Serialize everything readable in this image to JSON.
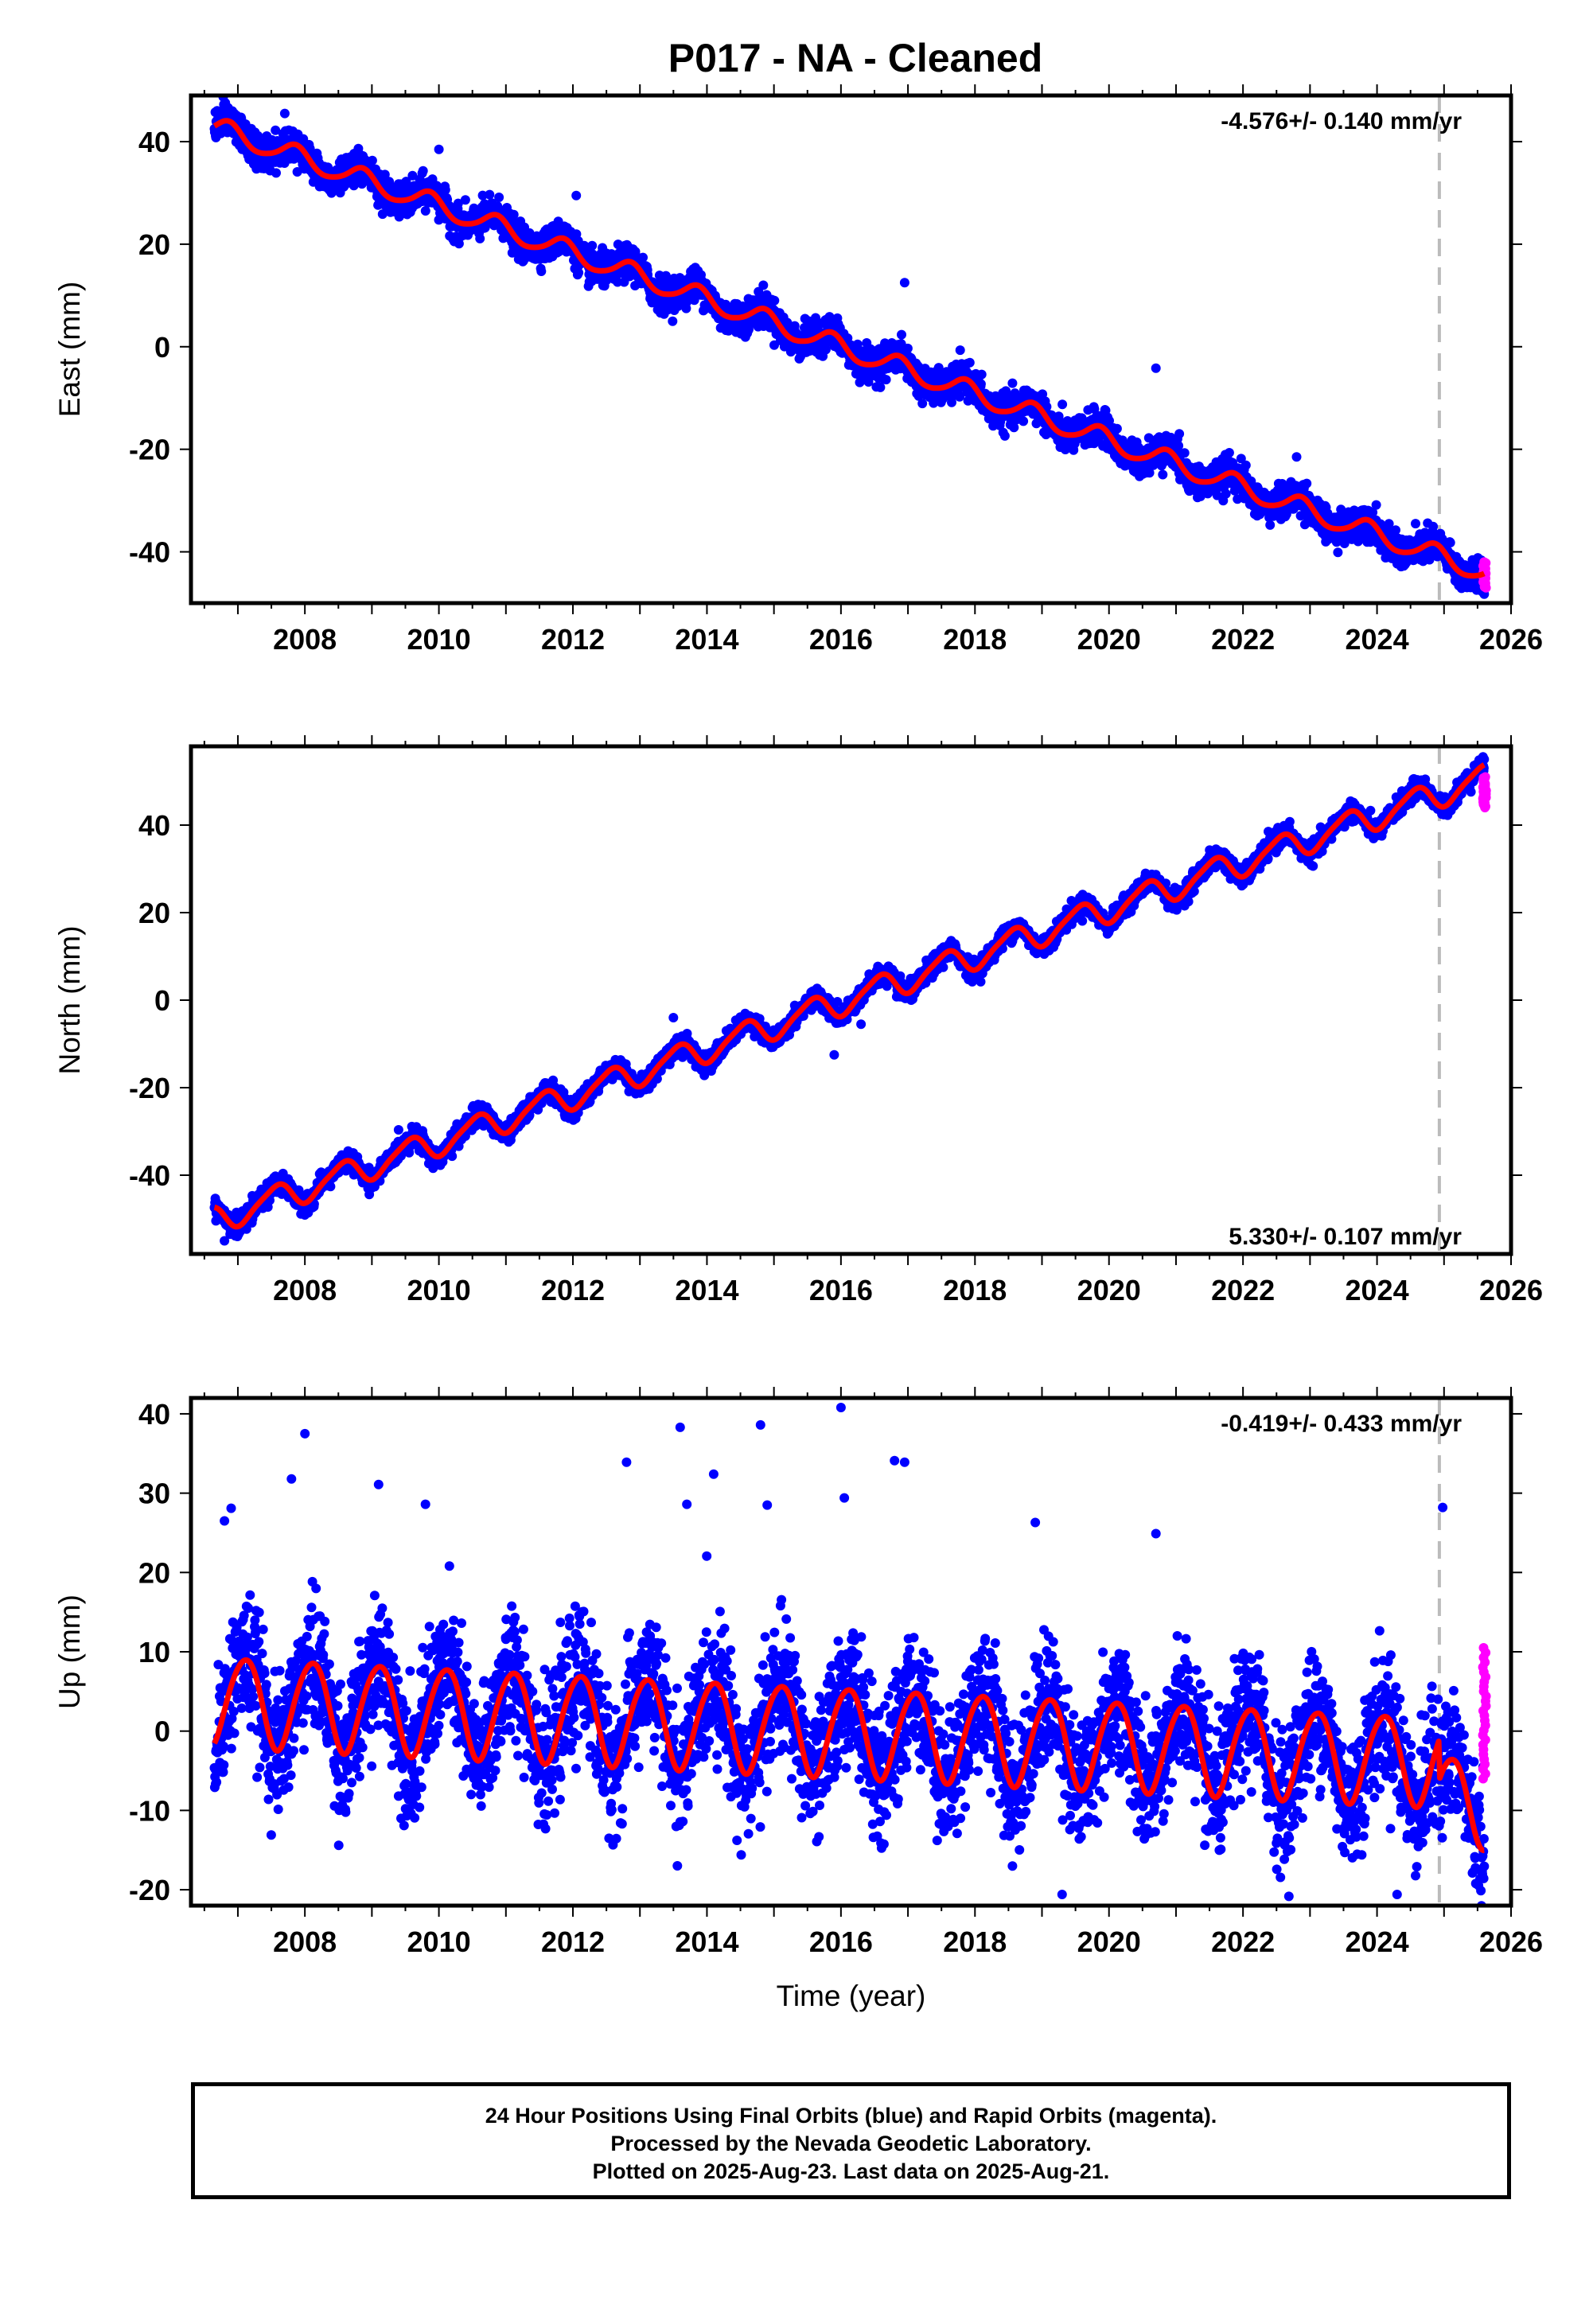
{
  "title": "P017  - NA - Cleaned",
  "caption": {
    "line1": "24 Hour Positions Using Final Orbits (blue) and Rapid Orbits (magenta).",
    "line2": "Processed by the Nevada Geodetic Laboratory.",
    "line3": "Plotted on 2025-Aug-23. Last data on 2025-Aug-21."
  },
  "colors": {
    "final_orbits": "#0000ff",
    "rapid_orbits": "#ff00ff",
    "model_fit": "#ff0000",
    "break_line": "#bbbbbb"
  },
  "chart_data": [
    {
      "type": "scatter",
      "panel": "east",
      "ylabel": "East (mm)",
      "xlabel": "",
      "xlim": [
        2006.3,
        2026.0
      ],
      "ylim": [
        -50,
        49
      ],
      "xticks": [
        2008,
        2010,
        2012,
        2014,
        2016,
        2018,
        2020,
        2022,
        2024,
        2026
      ],
      "yticks": [
        -40,
        -20,
        0,
        20,
        40
      ],
      "rate_label": "-4.576+/- 0.140 mm/yr",
      "rate_label_position": "top-right",
      "break_line_x": 2024.93,
      "model": {
        "intercept_at_2006_7": 42.5,
        "rate": -4.576,
        "annual_amplitude": 2.0,
        "annual_phase": 0.85,
        "semiannual_amplitude": 0.3,
        "semiannual_phase": 0.4,
        "offset": 0
      },
      "final_series": {
        "name": "Final Orbits (blue)",
        "x_range": [
          2006.65,
          2025.6
        ],
        "noise_sd": 1.6,
        "outliers": [
          [
            2020.7,
            -4.2
          ],
          [
            2012.05,
            29.5
          ],
          [
            2010.0,
            38.5
          ],
          [
            2016.95,
            12.5
          ],
          [
            2021.05,
            -17.0
          ],
          [
            2022.8,
            -21.5
          ],
          [
            2007.7,
            45.5
          ]
        ]
      },
      "rapid_series": {
        "name": "Rapid Orbits (magenta)",
        "x_range": [
          2025.58,
          2025.63
        ],
        "y_range": [
          -47,
          -42
        ]
      }
    },
    {
      "type": "scatter",
      "panel": "north",
      "ylabel": "North (mm)",
      "xlabel": "",
      "xlim": [
        2006.3,
        2026.0
      ],
      "ylim": [
        -58,
        58
      ],
      "xticks": [
        2008,
        2010,
        2012,
        2014,
        2016,
        2018,
        2020,
        2022,
        2024,
        2026
      ],
      "yticks": [
        -40,
        -20,
        0,
        20,
        40
      ],
      "rate_label": "5.330+/- 0.107 mm/yr",
      "rate_label_position": "bottom-right",
      "break_line_x": 2024.93,
      "model": {
        "intercept_at_2006_7": -50.0,
        "rate": 5.33,
        "annual_amplitude": 3.0,
        "annual_phase": 0.55,
        "semiannual_amplitude": 0.6,
        "semiannual_phase": 0.2,
        "offset": 0
      },
      "final_series": {
        "name": "Final Orbits (blue)",
        "x_range": [
          2006.65,
          2025.6
        ],
        "noise_sd": 1.1,
        "outliers": [
          [
            2013.5,
            -4.0
          ],
          [
            2015.9,
            -12.5
          ],
          [
            2006.8,
            -55.0
          ],
          [
            2016.3,
            -5.5
          ]
        ]
      },
      "rapid_series": {
        "name": "Rapid Orbits (magenta)",
        "x_range": [
          2025.58,
          2025.63
        ],
        "y_range": [
          44,
          51
        ]
      }
    },
    {
      "type": "scatter",
      "panel": "up",
      "ylabel": "Up (mm)",
      "xlabel": "Time (year)",
      "xlim": [
        2006.3,
        2026.0
      ],
      "ylim": [
        -22,
        42
      ],
      "xticks": [
        2008,
        2010,
        2012,
        2014,
        2016,
        2018,
        2020,
        2022,
        2024,
        2026
      ],
      "yticks": [
        -20,
        -10,
        0,
        10,
        20,
        30,
        40
      ],
      "rate_label": "-0.419+/- 0.433 mm/yr",
      "rate_label_position": "top-right",
      "break_line_x": 2024.93,
      "model": {
        "intercept_at_2006_7": 3.9,
        "rate": -0.419,
        "annual_amplitude": 5.6,
        "annual_phase": 0.1,
        "semiannual_amplitude": 0.5,
        "semiannual_phase": 0.3,
        "offset": -5.0,
        "offset_at": 2024.93
      },
      "final_series": {
        "name": "Final Orbits (blue)",
        "x_range": [
          2006.65,
          2025.6
        ],
        "noise_sd": 4.0,
        "outliers": [
          [
            2016.0,
            40.8
          ],
          [
            2013.6,
            38.3
          ],
          [
            2014.8,
            38.6
          ],
          [
            2008.0,
            37.5
          ],
          [
            2016.8,
            34.1
          ],
          [
            2016.95,
            33.9
          ],
          [
            2012.8,
            33.9
          ],
          [
            2014.1,
            32.4
          ],
          [
            2007.8,
            31.8
          ],
          [
            2009.1,
            31.1
          ],
          [
            2016.05,
            29.4
          ],
          [
            2013.7,
            28.6
          ],
          [
            2014.9,
            28.5
          ],
          [
            2009.8,
            28.6
          ],
          [
            2024.98,
            28.2
          ],
          [
            2006.9,
            28.1
          ],
          [
            2006.8,
            26.5
          ],
          [
            2018.9,
            26.3
          ],
          [
            2019.3,
            -20.6
          ],
          [
            2024.3,
            -20.6
          ],
          [
            2020.7,
            24.9
          ]
        ]
      },
      "rapid_series": {
        "name": "Rapid Orbits (magenta)",
        "x_range": [
          2025.58,
          2025.63
        ],
        "y_range": [
          -6,
          10.5
        ]
      }
    }
  ]
}
